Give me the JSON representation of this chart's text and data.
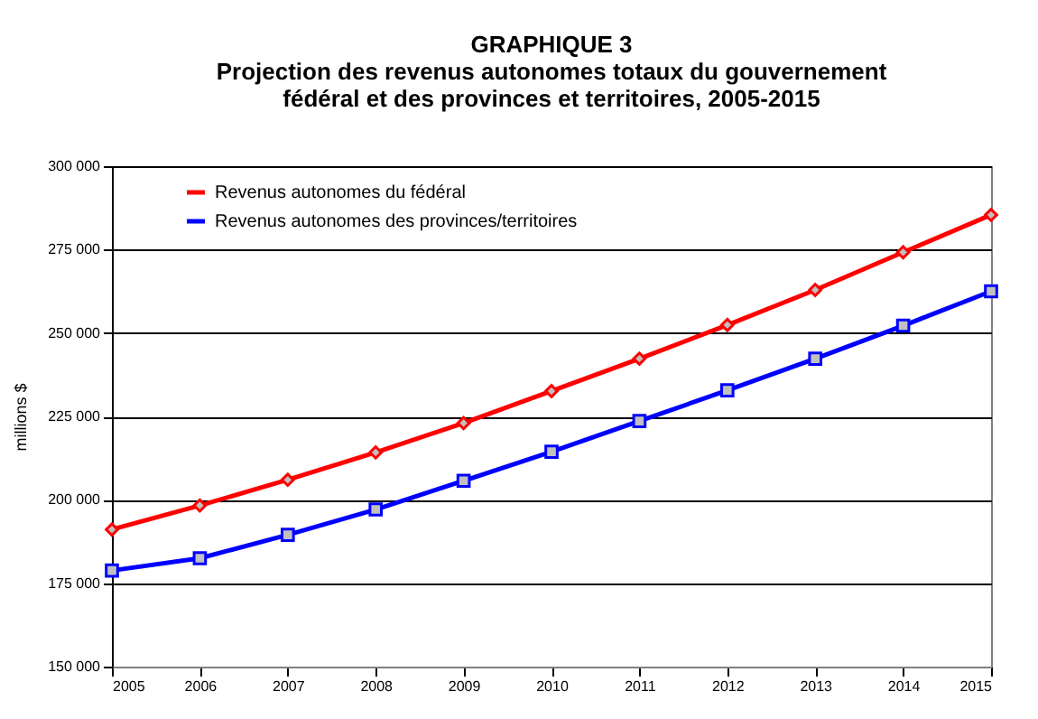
{
  "chart_data": {
    "type": "line",
    "title": "GRAPHIQUE 3",
    "subtitle": "Projection des revenus autonomes totaux du gouvernement fédéral et des provinces et territoires, 2005-2015",
    "ylabel": "millions $",
    "categories": [
      "2005",
      "2006",
      "2007",
      "2008",
      "2009",
      "2010",
      "2011",
      "2012",
      "2013",
      "2014",
      "2015"
    ],
    "series": [
      {
        "name": "Revenus autonomes du fédéral",
        "color": "#ff0000",
        "marker": "diamond",
        "values": [
          191100,
          198300,
          206000,
          214200,
          223000,
          232600,
          242300,
          252400,
          262900,
          274200,
          285400
        ]
      },
      {
        "name": "Revenus autonomes des provinces/territoires",
        "color": "#0000ff",
        "marker": "square",
        "values": [
          178800,
          182500,
          189500,
          197100,
          205700,
          214400,
          223600,
          232800,
          242300,
          252200,
          262500
        ]
      }
    ],
    "ylim": [
      150000,
      300000
    ],
    "yticks": [
      {
        "value": 150000,
        "label": "150 000"
      },
      {
        "value": 175000,
        "label": "175 000"
      },
      {
        "value": 200000,
        "label": "200 000"
      },
      {
        "value": 225000,
        "label": "225 000"
      },
      {
        "value": 250000,
        "label": "250 000"
      },
      {
        "value": 275000,
        "label": "275 000"
      },
      {
        "value": 300000,
        "label": "300 000"
      }
    ],
    "grid": "y",
    "legend": "top left"
  }
}
